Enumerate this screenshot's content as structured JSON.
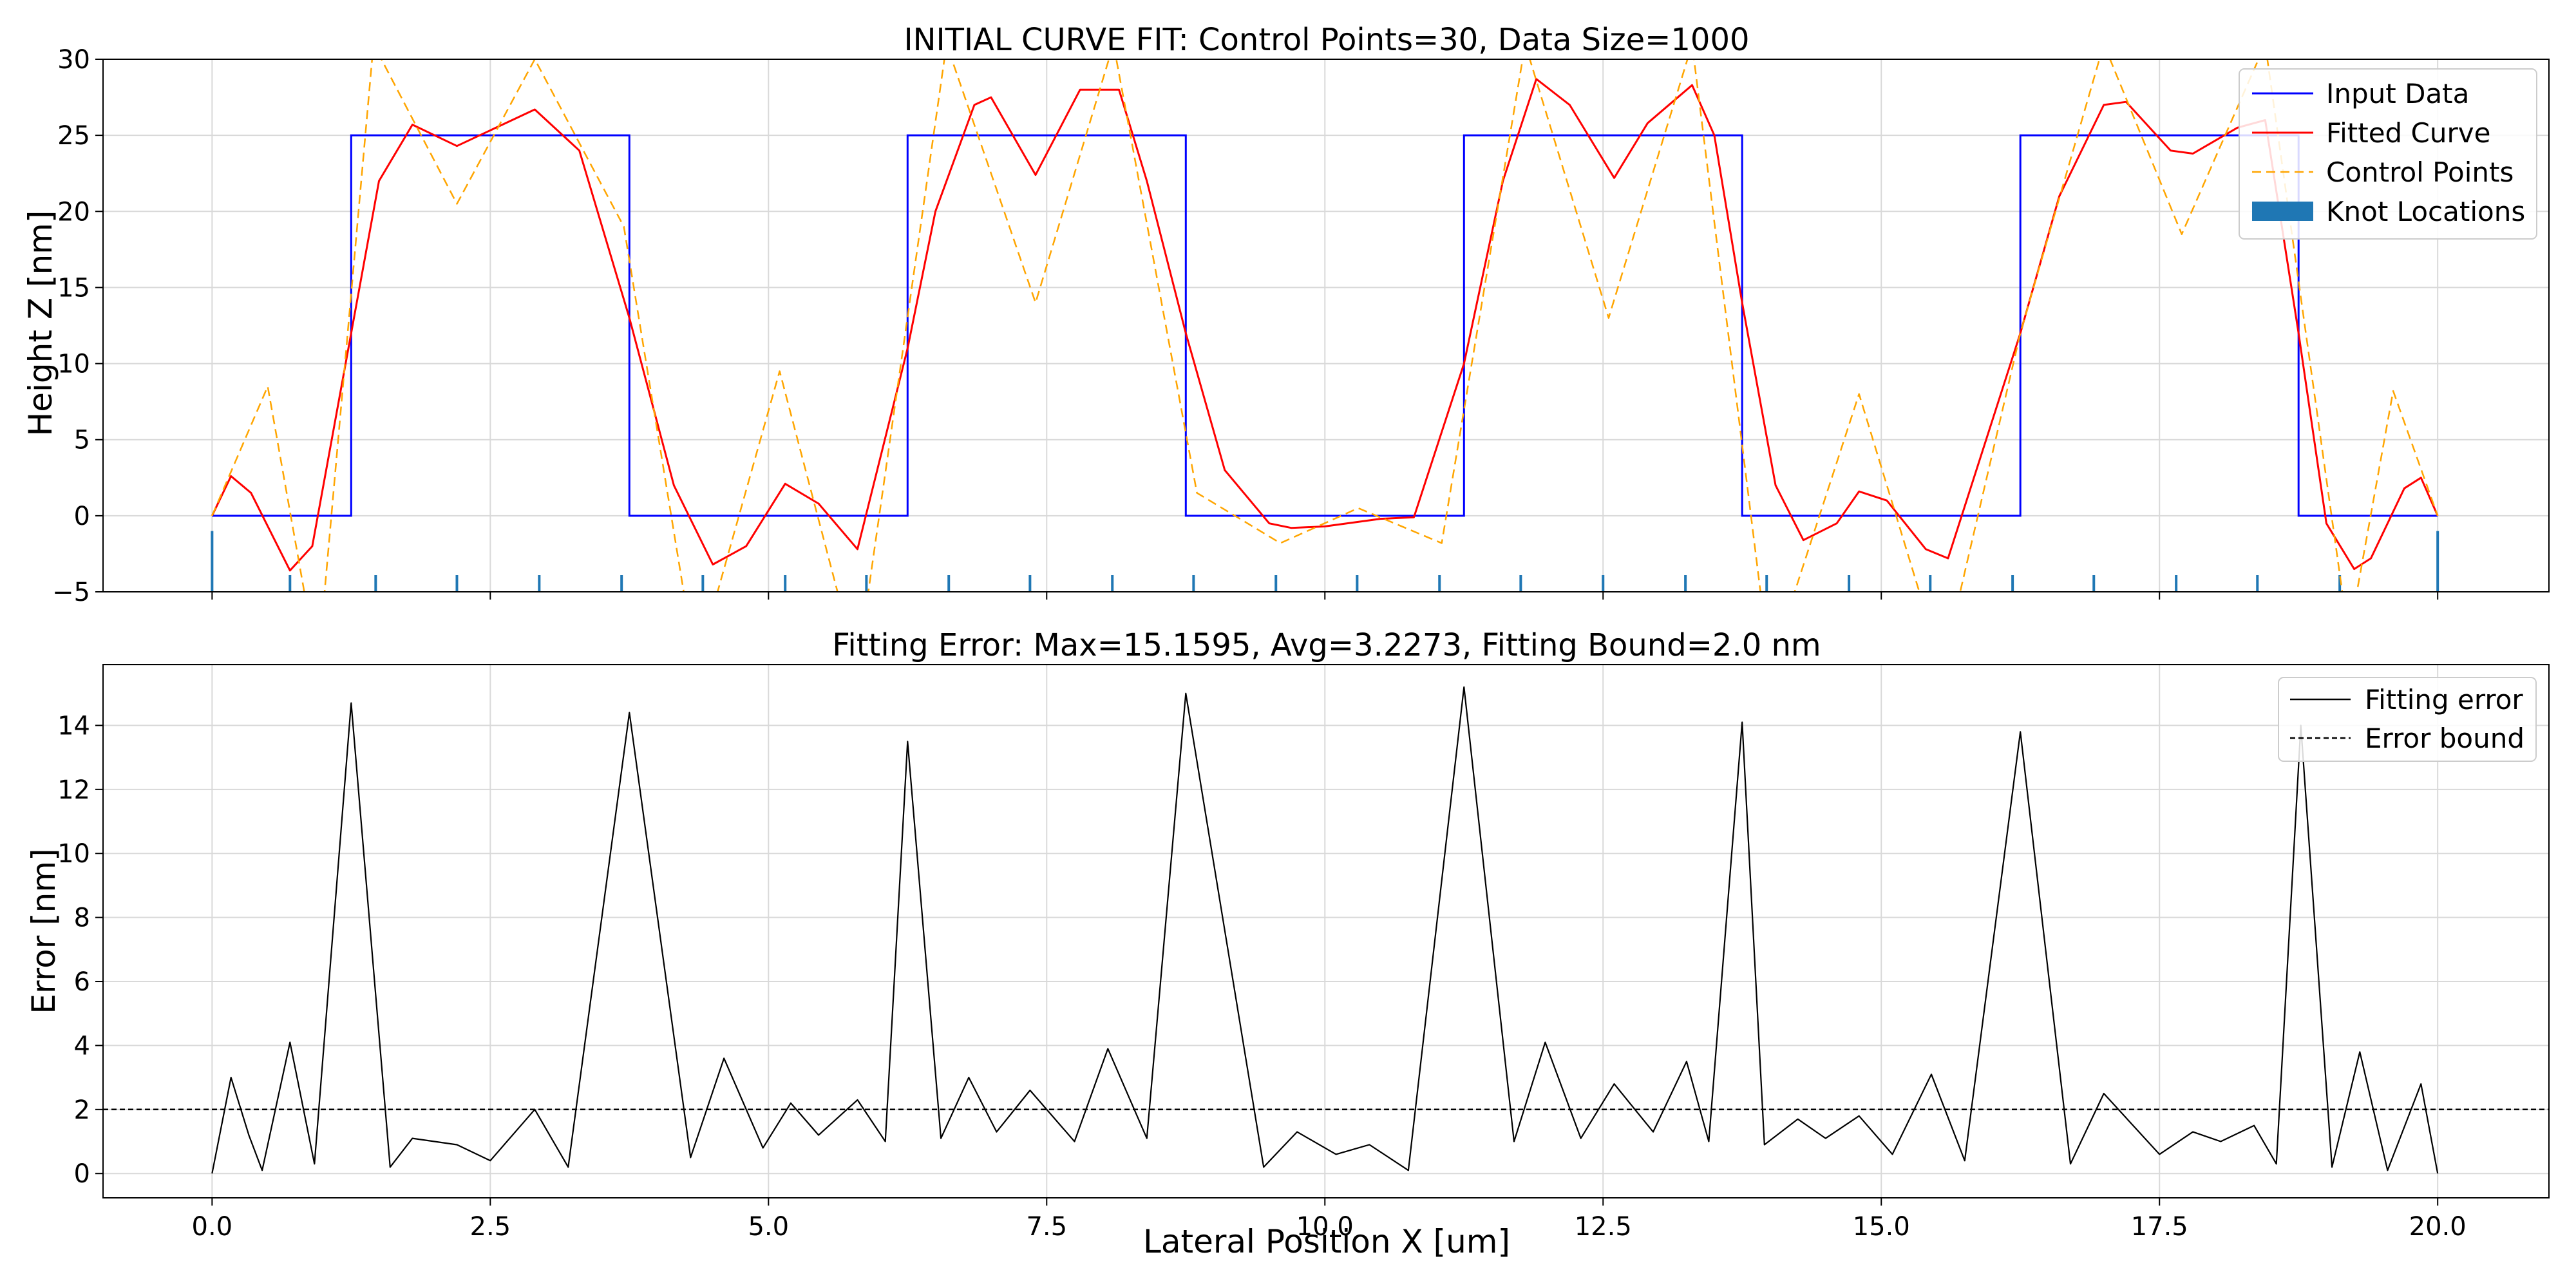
{
  "chart_data": [
    {
      "type": "line",
      "title": "INITIAL CURVE FIT: Control Points=30, Data Size=1000",
      "xlabel": "",
      "ylabel": "Height Z [nm]",
      "xlim": [
        -0.98,
        21.0
      ],
      "ylim": [
        -5,
        30
      ],
      "grid": true,
      "legend_position": "top-right",
      "x_ticks": [
        0,
        2.5,
        5,
        7.5,
        10,
        12.5,
        15,
        17.5,
        20
      ],
      "y_ticks": [
        -5,
        0,
        5,
        10,
        15,
        20,
        25,
        30
      ],
      "y_tick_labels": [
        "−5",
        "0",
        "5",
        "10",
        "15",
        "20",
        "25",
        "30"
      ],
      "series": [
        {
          "name": "Input Data",
          "color": "#0000ff",
          "x": [
            0,
            1.25,
            1.25,
            3.75,
            3.75,
            6.25,
            6.25,
            8.75,
            8.75,
            11.25,
            11.25,
            13.75,
            13.75,
            16.25,
            16.25,
            18.75,
            18.75,
            20
          ],
          "y": [
            0,
            0,
            25,
            25,
            0,
            0,
            25,
            25,
            0,
            0,
            25,
            25,
            0,
            0,
            25,
            25,
            0,
            0
          ]
        },
        {
          "name": "Fitted Curve",
          "color": "#ff0000",
          "x": [
            0,
            0.17,
            0.35,
            0.7,
            0.9,
            1.25,
            1.5,
            1.8,
            2.2,
            2.9,
            3.3,
            3.75,
            4.15,
            4.5,
            4.8,
            5.15,
            5.45,
            5.8,
            6.25,
            6.5,
            6.85,
            7.0,
            7.4,
            7.8,
            8.15,
            8.4,
            8.75,
            9.1,
            9.5,
            9.7,
            10.0,
            10.5,
            10.8,
            11.25,
            11.6,
            11.9,
            12.2,
            12.6,
            12.9,
            13.3,
            13.5,
            13.75,
            14.05,
            14.3,
            14.6,
            14.8,
            15.05,
            15.4,
            15.6,
            16.25,
            16.6,
            17.0,
            17.2,
            17.6,
            17.8,
            18.2,
            18.45,
            18.75,
            19.0,
            19.25,
            19.4,
            19.7,
            19.85,
            20.0
          ],
          "y": [
            0,
            2.6,
            1.5,
            -3.6,
            -2.0,
            12.0,
            22.0,
            25.7,
            24.3,
            26.7,
            24.0,
            13.0,
            2.0,
            -3.2,
            -2.0,
            2.1,
            0.8,
            -2.2,
            11.0,
            20.0,
            27.0,
            27.5,
            22.4,
            28.0,
            28.0,
            22.0,
            12.0,
            3.0,
            -0.5,
            -0.8,
            -0.7,
            -0.2,
            -0.1,
            10.0,
            22.0,
            28.7,
            27.0,
            22.2,
            25.8,
            28.3,
            25.0,
            14.0,
            2.0,
            -1.6,
            -0.5,
            1.6,
            1.0,
            -2.2,
            -2.8,
            12.0,
            21.0,
            27.0,
            27.2,
            24.0,
            23.8,
            25.5,
            26.0,
            12.0,
            -0.5,
            -3.5,
            -2.8,
            1.8,
            2.5,
            0
          ]
        },
        {
          "name": "Control Points",
          "color": "#ffa500",
          "x": [
            0,
            0.5,
            0.95,
            1.45,
            2.2,
            2.9,
            3.7,
            4.35,
            5.1,
            5.8,
            6.6,
            7.4,
            8.1,
            8.85,
            9.6,
            10.3,
            11.05,
            11.8,
            12.55,
            13.3,
            14.0,
            14.8,
            15.55,
            16.25,
            17.0,
            17.7,
            18.45,
            19.2,
            19.6,
            20.0
          ],
          "y": [
            0,
            8.5,
            -10,
            31,
            20.5,
            30,
            19,
            -10,
            9.5,
            -10,
            31,
            14,
            31,
            1.5,
            -1.8,
            0.5,
            -1.8,
            31,
            13,
            31,
            -10,
            8,
            -10,
            12,
            31,
            18.5,
            31,
            -8,
            8.2,
            0
          ]
        }
      ],
      "knot_locations": [
        0,
        0.7,
        1.47,
        2.2,
        2.94,
        3.68,
        4.41,
        5.15,
        5.88,
        6.62,
        7.35,
        8.09,
        8.82,
        9.56,
        10.29,
        11.03,
        11.76,
        12.5,
        13.24,
        13.97,
        14.71,
        15.44,
        16.18,
        16.91,
        17.65,
        18.38,
        19.12,
        20.0
      ],
      "legend": [
        "Input Data",
        "Fitted Curve",
        "Control Points",
        "Knot Locations"
      ]
    },
    {
      "type": "line",
      "title": "Fitting Error: Max=15.1595, Avg=3.2273, Fitting Bound=2.0 nm",
      "xlabel": "Lateral Position X [um]",
      "ylabel": "Error [nm]",
      "xlim": [
        -0.98,
        21.0
      ],
      "ylim": [
        -0.76,
        15.9
      ],
      "grid": true,
      "legend_position": "top-right",
      "x_ticks": [
        0,
        2.5,
        5,
        7.5,
        10,
        12.5,
        15,
        17.5,
        20
      ],
      "x_tick_labels": [
        "0.0",
        "2.5",
        "5.0",
        "7.5",
        "10.0",
        "12.5",
        "15.0",
        "17.5",
        "20.0"
      ],
      "y_ticks": [
        0,
        2,
        4,
        6,
        8,
        10,
        12,
        14
      ],
      "series": [
        {
          "name": "Fitting error",
          "color": "#000000",
          "x": [
            0,
            0.17,
            0.33,
            0.45,
            0.7,
            0.92,
            1.25,
            1.6,
            1.8,
            2.2,
            2.5,
            2.9,
            3.2,
            3.75,
            4.3,
            4.6,
            4.95,
            5.2,
            5.45,
            5.8,
            6.05,
            6.25,
            6.55,
            6.8,
            7.05,
            7.35,
            7.75,
            8.05,
            8.4,
            8.75,
            9.45,
            9.75,
            10.1,
            10.4,
            10.75,
            11.25,
            11.7,
            11.98,
            12.3,
            12.6,
            12.95,
            13.25,
            13.45,
            13.75,
            13.95,
            14.25,
            14.5,
            14.8,
            15.1,
            15.45,
            15.75,
            16.25,
            16.7,
            17.0,
            17.5,
            17.8,
            18.05,
            18.35,
            18.55,
            18.77,
            19.05,
            19.3,
            19.55,
            19.85,
            20.0
          ],
          "y": [
            0,
            3.0,
            1.2,
            0.1,
            4.1,
            0.3,
            14.7,
            0.2,
            1.1,
            0.9,
            0.4,
            2.0,
            0.2,
            14.4,
            0.5,
            3.6,
            0.8,
            2.2,
            1.2,
            2.3,
            1.0,
            13.5,
            1.1,
            3.0,
            1.3,
            2.6,
            1.0,
            3.9,
            1.1,
            15.0,
            0.2,
            1.3,
            0.6,
            0.9,
            0.1,
            15.2,
            1.0,
            4.1,
            1.1,
            2.8,
            1.3,
            3.5,
            1.0,
            14.1,
            0.9,
            1.7,
            1.1,
            1.8,
            0.6,
            3.1,
            0.4,
            13.8,
            0.3,
            2.5,
            0.6,
            1.3,
            1.0,
            1.5,
            0.3,
            14.0,
            0.2,
            3.8,
            0.1,
            2.8,
            0
          ]
        },
        {
          "name": "Error bound",
          "color": "#000000",
          "x": [
            -0.98,
            21.0
          ],
          "y": [
            2,
            2
          ]
        }
      ],
      "legend": [
        "Fitting error",
        "Error bound"
      ]
    }
  ]
}
